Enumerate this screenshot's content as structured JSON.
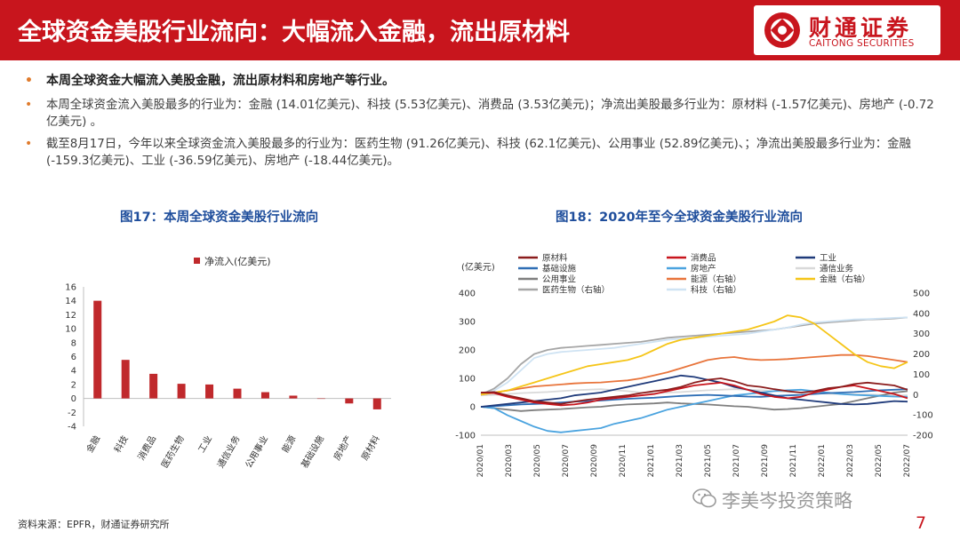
{
  "header": {
    "title": "全球资金美股行业流向：大幅流入金融，流出原材料",
    "logo_cn": "财通证券",
    "logo_en": "CAITONG SECURITIES"
  },
  "bullets": [
    "本周全球资金大幅流入美股金融，流出原材料和房地产等行业。",
    "本周全球资金流入美股最多的行业为：金融 (14.01亿美元)、科技 (5.53亿美元)、消费品 (3.53亿美元)；净流出美股最多行业为：原材料 (-1.57亿美元)、房地产 (-0.72亿美元) 。",
    "截至8月17日，今年以来全球资金流入美股最多的行业为：医药生物 (91.26亿美元)、科技 (62.1亿美元)、公用事业 (52.89亿美元)、；净流出美股最多行业为：金融 (-159.3亿美元)、工业 (-36.59亿美元)、房地产 (-18.44亿美元)。"
  ],
  "fig17_title": "图17：本周全球资金美股行业流向",
  "fig18_title": "图18：2020年至今全球资金美股行业流向",
  "source": "资料来源：EPFR，财通证券研究所",
  "watermark": "李美岑投资策略",
  "page_number": "7",
  "chart_data": [
    {
      "type": "bar",
      "legend": "净流入(亿美元)",
      "categories": [
        "金融",
        "科技",
        "消费品",
        "医药生物",
        "工业",
        "通信业务",
        "公用事业",
        "能源",
        "基础设施",
        "房地产",
        "原材料"
      ],
      "values": [
        14.01,
        5.53,
        3.53,
        2.1,
        2.0,
        1.4,
        0.9,
        0.4,
        0.0,
        -0.72,
        -1.57
      ],
      "ylim": [
        -4,
        16
      ],
      "yticks": [
        -4,
        -2,
        0,
        2,
        4,
        6,
        8,
        10,
        12,
        14,
        16
      ],
      "color": "#c0292c"
    },
    {
      "type": "line",
      "ylabel": "(亿美元)",
      "ylim": [
        -100,
        400
      ],
      "yticks": [
        -100,
        0,
        100,
        200,
        300,
        400
      ],
      "y2lim": [
        -200,
        500
      ],
      "y2ticks": [
        -200,
        -100,
        0,
        100,
        200,
        300,
        400,
        500
      ],
      "x_ticks": [
        "2020/01",
        "2020/03",
        "2020/05",
        "2020/07",
        "2020/09",
        "2020/11",
        "2021/01",
        "2021/03",
        "2021/05",
        "2021/07",
        "2021/09",
        "2021/11",
        "2022/01",
        "2022/03",
        "2022/05",
        "2022/07"
      ],
      "series": [
        {
          "name": "原材料",
          "axis": "left",
          "color": "#8b1c1c",
          "values": [
            50,
            52,
            40,
            30,
            20,
            15,
            10,
            18,
            25,
            30,
            35,
            40,
            48,
            55,
            60,
            70,
            85,
            95,
            100,
            90,
            75,
            70,
            62,
            55,
            50,
            55,
            65,
            70,
            80,
            85,
            80,
            75,
            60
          ]
        },
        {
          "name": "消费品",
          "axis": "left",
          "color": "#c8151d",
          "values": [
            50,
            48,
            35,
            25,
            15,
            10,
            5,
            8,
            15,
            25,
            30,
            35,
            40,
            45,
            55,
            65,
            75,
            80,
            85,
            75,
            60,
            45,
            35,
            30,
            35,
            50,
            60,
            70,
            75,
            65,
            55,
            45,
            30
          ]
        },
        {
          "name": "工业",
          "axis": "left",
          "color": "#1f3a7a",
          "values": [
            0,
            5,
            10,
            15,
            20,
            25,
            30,
            40,
            45,
            50,
            60,
            70,
            80,
            90,
            100,
            110,
            105,
            95,
            85,
            70,
            60,
            50,
            40,
            30,
            25,
            20,
            15,
            10,
            8,
            10,
            15,
            20,
            18
          ]
        },
        {
          "name": "基础设施",
          "axis": "left",
          "color": "#2e6eb5",
          "values": [
            0,
            2,
            5,
            8,
            10,
            12,
            15,
            18,
            20,
            22,
            25,
            28,
            30,
            32,
            35,
            38,
            40,
            42,
            40,
            38,
            36,
            35,
            38,
            40,
            42,
            45,
            48,
            50,
            52,
            55,
            58,
            60,
            62
          ]
        },
        {
          "name": "房地产",
          "axis": "left",
          "color": "#4aa3df",
          "values": [
            0,
            -5,
            -30,
            -50,
            -70,
            -85,
            -90,
            -85,
            -80,
            -75,
            -60,
            -50,
            -40,
            -25,
            -10,
            0,
            10,
            20,
            30,
            40,
            45,
            50,
            55,
            58,
            60,
            55,
            50,
            45,
            42,
            40,
            38,
            36,
            35
          ]
        },
        {
          "name": "通信业务",
          "axis": "left",
          "color": "#d9d9d9",
          "values": [
            40,
            42,
            45,
            48,
            50,
            52,
            55,
            58,
            60,
            62,
            58,
            55,
            50,
            48,
            50,
            52,
            55,
            58,
            60,
            62,
            60,
            58,
            55,
            52,
            50,
            48,
            46,
            45,
            44,
            43,
            42,
            41,
            40
          ]
        },
        {
          "name": "公用事业",
          "axis": "left",
          "color": "#7f7f7f",
          "values": [
            0,
            -5,
            -10,
            -15,
            -12,
            -10,
            -8,
            -5,
            -2,
            0,
            5,
            8,
            10,
            12,
            15,
            12,
            10,
            8,
            5,
            2,
            0,
            -5,
            -10,
            -8,
            -5,
            0,
            5,
            10,
            20,
            30,
            40,
            50,
            55
          ]
        },
        {
          "name": "能源（右轴）",
          "axis": "right",
          "color": "#e8743b",
          "values": [
            0,
            10,
            20,
            30,
            40,
            45,
            50,
            55,
            58,
            60,
            65,
            70,
            80,
            95,
            110,
            130,
            150,
            170,
            180,
            185,
            175,
            170,
            172,
            175,
            180,
            185,
            190,
            195,
            195,
            190,
            180,
            170,
            160
          ]
        },
        {
          "name": "金融（右轴）",
          "axis": "right",
          "color": "#f5c518",
          "values": [
            0,
            10,
            20,
            40,
            60,
            80,
            100,
            120,
            140,
            150,
            160,
            170,
            190,
            220,
            250,
            270,
            280,
            290,
            300,
            310,
            320,
            340,
            360,
            390,
            380,
            350,
            300,
            250,
            200,
            160,
            140,
            130,
            160
          ]
        },
        {
          "name": "医药生物（右轴）",
          "axis": "right",
          "color": "#a6a6a6",
          "values": [
            0,
            30,
            80,
            150,
            200,
            220,
            230,
            235,
            240,
            245,
            250,
            255,
            260,
            270,
            280,
            285,
            290,
            295,
            300,
            305,
            310,
            315,
            320,
            330,
            340,
            350,
            355,
            360,
            365,
            370,
            372,
            375,
            380
          ]
        },
        {
          "name": "科技（右轴）",
          "axis": "right",
          "color": "#cfe3f3",
          "values": [
            0,
            20,
            60,
            120,
            180,
            200,
            210,
            215,
            220,
            225,
            230,
            240,
            250,
            260,
            270,
            275,
            280,
            285,
            290,
            295,
            300,
            310,
            320,
            330,
            345,
            355,
            360,
            365,
            370,
            372,
            375,
            378,
            380
          ]
        }
      ]
    }
  ]
}
